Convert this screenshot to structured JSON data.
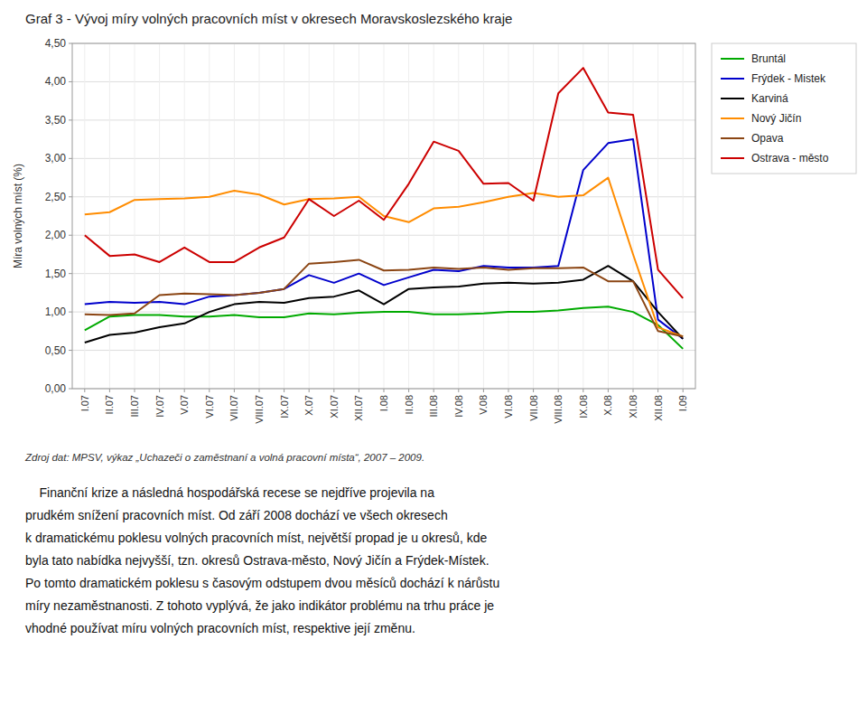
{
  "chart_data": {
    "type": "line",
    "title": "Graf 3 - Vývoj míry volných pracovních míst v okresech Moravskoslezského kraje",
    "ylabel": "Míra volných míst (%)",
    "source": "Zdroj dat: MPSV, výkaz „Uchazeči o zaměstnaní a volná pracovní místa“, 2007 – 2009.",
    "annotations": [
      "    Finanční krize a následná hospodářská recese se nejdříve projevila na",
      "prudkém snížení pracovních míst. Od září 2008 dochází ve všech okresech",
      "k dramatickému poklesu volných pracovních míst, největší propad je u okresů, kde",
      "byla tato nabídka nejvyšší, tzn. okresů Ostrava-město, Nový Jičín a Frýdek-Místek.",
      "Po tomto dramatickém poklesu s časovým odstupem dvou měsíců dochází k nárůstu",
      "míry nezaměstnanosti. Z tohoto vyplývá, že jako indikátor problému na trhu práce je",
      "vhodné používat míru volných pracovních míst, respektive její změnu."
    ],
    "categories": [
      "I.07",
      "II.07",
      "III.07",
      "IV.07",
      "V.07",
      "VI.07",
      "VII.07",
      "VIII.07",
      "IX.07",
      "X.07",
      "XI.07",
      "XII.07",
      "I.08",
      "II.08",
      "III.08",
      "IV.08",
      "V.08",
      "VI.08",
      "VII.08",
      "VIII.08",
      "IX.08",
      "X.08",
      "XI.08",
      "XII.08",
      "I.09"
    ],
    "ylim": [
      0.0,
      4.5
    ],
    "yticks": [
      {
        "value": 0.0,
        "label": "0,00"
      },
      {
        "value": 0.5,
        "label": "0,50"
      },
      {
        "value": 1.0,
        "label": "1,00"
      },
      {
        "value": 1.5,
        "label": "1,50"
      },
      {
        "value": 2.0,
        "label": "2,00"
      },
      {
        "value": 2.5,
        "label": "2,50"
      },
      {
        "value": 3.0,
        "label": "3,00"
      },
      {
        "value": 3.5,
        "label": "3,50"
      },
      {
        "value": 4.0,
        "label": "4,00"
      },
      {
        "value": 4.5,
        "label": "4,50"
      }
    ],
    "grid": true,
    "legend": "right",
    "series": [
      {
        "name": "Bruntál",
        "color": "#00AA00",
        "values": [
          0.76,
          0.94,
          0.96,
          0.96,
          0.94,
          0.94,
          0.96,
          0.93,
          0.93,
          0.98,
          0.97,
          0.99,
          1.0,
          1.0,
          0.97,
          0.97,
          0.98,
          1.0,
          1.0,
          1.02,
          1.05,
          1.07,
          1.0,
          0.83,
          0.52
        ]
      },
      {
        "name": "Frýdek - Mistek",
        "color": "#0000CC",
        "values": [
          1.1,
          1.13,
          1.12,
          1.13,
          1.1,
          1.2,
          1.22,
          1.25,
          1.3,
          1.48,
          1.38,
          1.5,
          1.35,
          1.45,
          1.55,
          1.53,
          1.6,
          1.58,
          1.58,
          1.6,
          2.85,
          3.2,
          3.25,
          0.9,
          0.65
        ]
      },
      {
        "name": "Karviná",
        "color": "#000000",
        "values": [
          0.6,
          0.7,
          0.73,
          0.8,
          0.85,
          1.0,
          1.1,
          1.13,
          1.12,
          1.18,
          1.2,
          1.28,
          1.1,
          1.3,
          1.32,
          1.33,
          1.37,
          1.38,
          1.37,
          1.38,
          1.42,
          1.6,
          1.4,
          1.0,
          0.65
        ]
      },
      {
        "name": "Nový Jičín",
        "color": "#FF8C00",
        "values": [
          2.27,
          2.3,
          2.46,
          2.47,
          2.48,
          2.5,
          2.58,
          2.53,
          2.4,
          2.47,
          2.48,
          2.5,
          2.25,
          2.17,
          2.35,
          2.37,
          2.43,
          2.5,
          2.55,
          2.5,
          2.52,
          2.75,
          1.75,
          0.8,
          0.68
        ]
      },
      {
        "name": "Opava",
        "color": "#8B4513",
        "values": [
          0.97,
          0.96,
          0.98,
          1.22,
          1.24,
          1.23,
          1.22,
          1.25,
          1.3,
          1.63,
          1.65,
          1.68,
          1.54,
          1.55,
          1.58,
          1.56,
          1.58,
          1.55,
          1.57,
          1.57,
          1.58,
          1.4,
          1.4,
          0.75,
          0.68
        ]
      },
      {
        "name": "Ostrava - město",
        "color": "#CC0000",
        "values": [
          2.0,
          1.73,
          1.75,
          1.65,
          1.84,
          1.65,
          1.65,
          1.84,
          1.97,
          2.47,
          2.25,
          2.45,
          2.2,
          2.67,
          3.22,
          3.1,
          2.67,
          2.68,
          2.45,
          3.85,
          4.18,
          3.6,
          3.57,
          1.55,
          1.18
        ]
      }
    ]
  }
}
